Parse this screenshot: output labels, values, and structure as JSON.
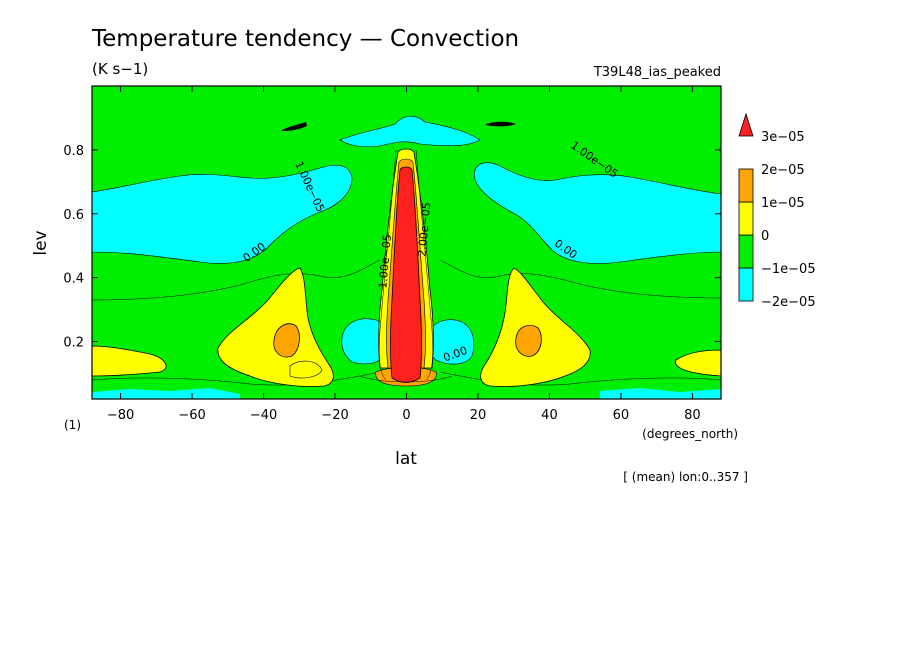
{
  "chart_data": {
    "type": "heatmap",
    "title": "Temperature tendency — Convection",
    "units": "(K s−1)",
    "run_label": "T39L48_ias_peaked",
    "xlabel": "lat",
    "ylabel": "lev",
    "x_units": "(degrees_north)",
    "y_units": "(1)",
    "averaging_note": "[ (mean) lon:0..357 ]",
    "xlim": [
      -88,
      88
    ],
    "ylim": [
      1.0,
      0.02
    ],
    "x_ticks": [
      -80,
      -60,
      -40,
      -20,
      0,
      20,
      40,
      60,
      80
    ],
    "x_tick_labels": [
      "−80",
      "−60",
      "−40",
      "−20",
      "0",
      "20",
      "40",
      "60",
      "80"
    ],
    "y_ticks": [
      0.2,
      0.4,
      0.6,
      0.8
    ],
    "y_tick_labels": [
      "0.2",
      "0.4",
      "0.6",
      "0.8"
    ],
    "colorbar": {
      "levels": [
        -2e-05,
        -1e-05,
        0,
        1e-05,
        2e-05,
        3e-05
      ],
      "labels": [
        "−2e−05",
        "−1e−05",
        "0",
        "1e−05",
        "2e−05",
        "3e−05"
      ],
      "colors": [
        "#1e90ff",
        "#00ffff",
        "#00ee00",
        "#ffff00",
        "#ffa500",
        "#ff2020"
      ]
    },
    "contour_labels": [
      {
        "text": "0.00",
        "lat": -42,
        "lev": 0.47,
        "angle": -35
      },
      {
        "text": "0.00",
        "lat": 44,
        "lev": 0.48,
        "angle": 35
      },
      {
        "text": "0.00",
        "lat": 14,
        "lev": 0.15,
        "angle": -20
      },
      {
        "text": "1.00e−05",
        "lat": -28,
        "lev": 0.68,
        "angle": 65
      },
      {
        "text": "1.00e−05",
        "lat": 52,
        "lev": 0.76,
        "angle": 35
      },
      {
        "text": "1.00e−05",
        "lat": -5,
        "lev": 0.45,
        "angle": -85
      },
      {
        "text": "2.00e−05",
        "lat": 6,
        "lev": 0.55,
        "angle": -85
      }
    ],
    "grid": false,
    "legend_position": "right"
  }
}
